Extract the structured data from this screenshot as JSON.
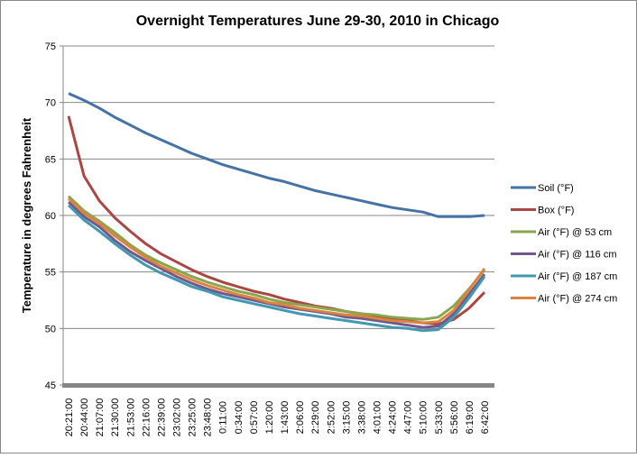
{
  "chart_data": {
    "type": "line",
    "title": "Overnight Temperatures June 29-30, 2010 in Chicago",
    "xlabel": "",
    "ylabel": "Temperature in degrees Fahrenheit",
    "ylim": [
      45,
      75
    ],
    "yticks": [
      45,
      50,
      55,
      60,
      65,
      70,
      75
    ],
    "grid": true,
    "legend_position": "right",
    "categories": [
      "20:21:00",
      "20:44:00",
      "21:07:00",
      "21:30:00",
      "21:53:00",
      "22:16:00",
      "22:39:00",
      "23:02:00",
      "23:25:00",
      "23:48:00",
      "0:11:00",
      "0:34:00",
      "0:57:00",
      "1:20:00",
      "1:43:00",
      "2:06:00",
      "2:29:00",
      "2:52:00",
      "3:15:00",
      "3:38:00",
      "4:01:00",
      "4:24:00",
      "4:47:00",
      "5:10:00",
      "5:33:00",
      "5:56:00",
      "6:19:00",
      "6:42:00"
    ],
    "series": [
      {
        "name": "Soil (°F)",
        "color": "#4572a7",
        "values": [
          70.8,
          70.2,
          69.5,
          68.7,
          68.0,
          67.3,
          66.7,
          66.1,
          65.5,
          65.0,
          64.5,
          64.1,
          63.7,
          63.3,
          63.0,
          62.6,
          62.2,
          61.9,
          61.6,
          61.3,
          61.0,
          60.7,
          60.5,
          60.3,
          59.9,
          59.9,
          59.9,
          60.0
        ]
      },
      {
        "name": "Box (°F)",
        "color": "#aa4643",
        "values": [
          68.8,
          63.5,
          61.3,
          59.8,
          58.6,
          57.5,
          56.6,
          55.9,
          55.2,
          54.6,
          54.1,
          53.7,
          53.3,
          53.0,
          52.6,
          52.3,
          52.0,
          51.8,
          51.5,
          51.3,
          51.1,
          50.9,
          50.7,
          50.5,
          50.4,
          50.8,
          51.8,
          53.2
        ]
      },
      {
        "name": "Air (°F) @ 53 cm",
        "color": "#89a54e",
        "values": [
          61.7,
          60.4,
          59.5,
          58.5,
          57.4,
          56.5,
          55.8,
          55.2,
          54.6,
          54.1,
          53.7,
          53.3,
          53.0,
          52.6,
          52.3,
          52.1,
          51.9,
          51.7,
          51.5,
          51.3,
          51.2,
          51.0,
          50.9,
          50.8,
          51.0,
          52.0,
          53.5,
          55.2
        ]
      },
      {
        "name": "Air (°F) @ 116 cm",
        "color": "#71588f",
        "values": [
          61.2,
          59.9,
          59.0,
          57.8,
          56.8,
          56.0,
          55.3,
          54.6,
          54.0,
          53.5,
          53.1,
          52.8,
          52.5,
          52.2,
          51.9,
          51.7,
          51.5,
          51.3,
          51.0,
          50.9,
          50.7,
          50.5,
          50.3,
          50.1,
          50.2,
          51.3,
          53.0,
          54.8
        ]
      },
      {
        "name": "Air (°F) @ 187 cm",
        "color": "#4198af",
        "values": [
          60.9,
          59.6,
          58.6,
          57.5,
          56.5,
          55.6,
          54.9,
          54.3,
          53.7,
          53.3,
          52.8,
          52.5,
          52.2,
          51.9,
          51.6,
          51.3,
          51.1,
          50.9,
          50.7,
          50.5,
          50.3,
          50.1,
          50.0,
          49.8,
          49.9,
          51.0,
          52.7,
          54.6
        ]
      },
      {
        "name": "Air (°F) @ 274 cm",
        "color": "#db843d",
        "values": [
          61.5,
          60.2,
          59.3,
          58.2,
          57.2,
          56.3,
          55.5,
          54.9,
          54.3,
          53.8,
          53.4,
          53.0,
          52.7,
          52.3,
          52.1,
          51.8,
          51.6,
          51.4,
          51.2,
          51.1,
          50.9,
          50.7,
          50.6,
          50.5,
          50.6,
          51.6,
          53.4,
          55.3
        ]
      }
    ]
  }
}
